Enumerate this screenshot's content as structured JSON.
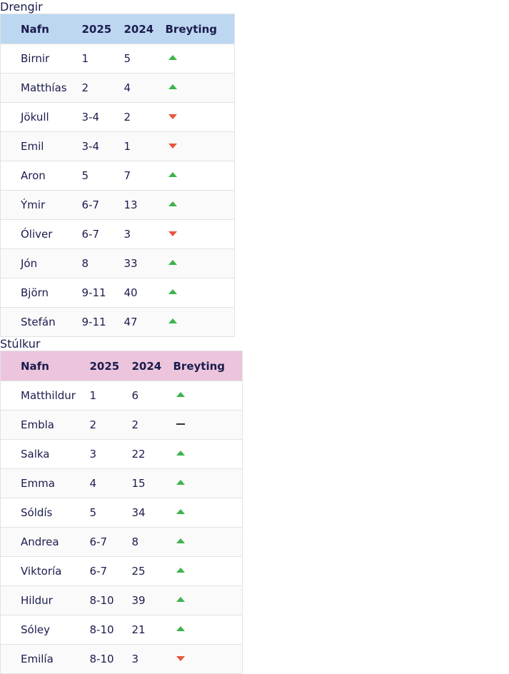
{
  "tables": [
    {
      "title": "Drengir",
      "headers": [
        "Nafn",
        "2025",
        "2024",
        "Breyting"
      ],
      "header_color": "#bdd7f1",
      "rows": [
        {
          "cells": [
            "Birnir",
            "1",
            "5"
          ],
          "trend": "up"
        },
        {
          "cells": [
            "Matthías",
            "2",
            "4"
          ],
          "trend": "up"
        },
        {
          "cells": [
            "Jökull",
            "3-4",
            "2"
          ],
          "trend": "down"
        },
        {
          "cells": [
            "Emil",
            "3-4",
            "1"
          ],
          "trend": "down"
        },
        {
          "cells": [
            "Aron",
            "5",
            "7"
          ],
          "trend": "up"
        },
        {
          "cells": [
            "Ýmir",
            "6-7",
            "13"
          ],
          "trend": "up"
        },
        {
          "cells": [
            "Óliver",
            "6-7",
            "3"
          ],
          "trend": "down"
        },
        {
          "cells": [
            "Jón",
            "8",
            "33"
          ],
          "trend": "up"
        },
        {
          "cells": [
            "Björn",
            "9-11",
            "40"
          ],
          "trend": "up"
        },
        {
          "cells": [
            "Stefán",
            "9-11",
            "47"
          ],
          "trend": "up"
        }
      ]
    },
    {
      "title": "Stúlkur",
      "headers": [
        "Nafn",
        "2025",
        "2024",
        "Breyting"
      ],
      "header_color": "#ecc5dd",
      "rows": [
        {
          "cells": [
            "Matthildur",
            "1",
            "6"
          ],
          "trend": "up"
        },
        {
          "cells": [
            "Embla",
            "2",
            "2"
          ],
          "trend": "same"
        },
        {
          "cells": [
            "Salka",
            "3",
            "22"
          ],
          "trend": "up"
        },
        {
          "cells": [
            "Emma",
            "4",
            "15"
          ],
          "trend": "up"
        },
        {
          "cells": [
            "Sóldís",
            "5",
            "34"
          ],
          "trend": "up"
        },
        {
          "cells": [
            "Andrea",
            "6-7",
            "8"
          ],
          "trend": "up"
        },
        {
          "cells": [
            "Viktoría",
            "6-7",
            "25"
          ],
          "trend": "up"
        },
        {
          "cells": [
            "Hildur",
            "8-10",
            "39"
          ],
          "trend": "up"
        },
        {
          "cells": [
            "Sóley",
            "8-10",
            "21"
          ],
          "trend": "up"
        },
        {
          "cells": [
            "Emilía",
            "8-10",
            "3"
          ],
          "trend": "down"
        }
      ]
    }
  ]
}
